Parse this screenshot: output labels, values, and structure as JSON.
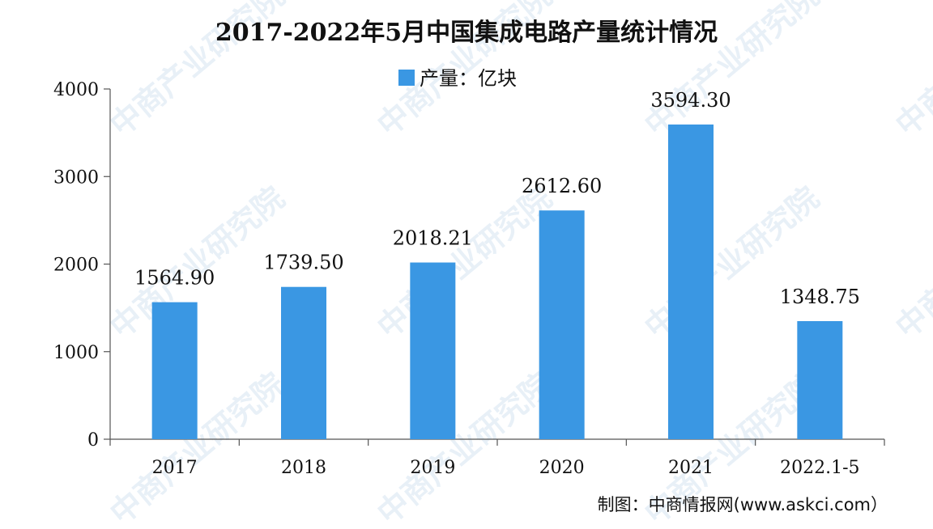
{
  "chart_data": {
    "type": "bar",
    "title": "2017-2022年5月中国集成电路产量统计情况",
    "legend": {
      "label": "产量：亿块",
      "placement": "top-center",
      "color": "#3a97e3"
    },
    "categories": [
      "2017",
      "2018",
      "2019",
      "2020",
      "2021",
      "2022.1-5"
    ],
    "values": [
      1564.9,
      1739.5,
      2018.21,
      2612.6,
      3594.3,
      1348.75
    ],
    "data_labels": [
      "1564.90",
      "1739.50",
      "2018.21",
      "2612.60",
      "3594.30",
      "1348.75"
    ],
    "yticks": [
      "0",
      "1000",
      "2000",
      "3000",
      "4000"
    ],
    "ylim": [
      0,
      4000
    ],
    "grid": false,
    "bar_color": "#3a97e3"
  },
  "source": "制图：中商情报网(www.askci.com）",
  "watermark": "中商产业研究院"
}
